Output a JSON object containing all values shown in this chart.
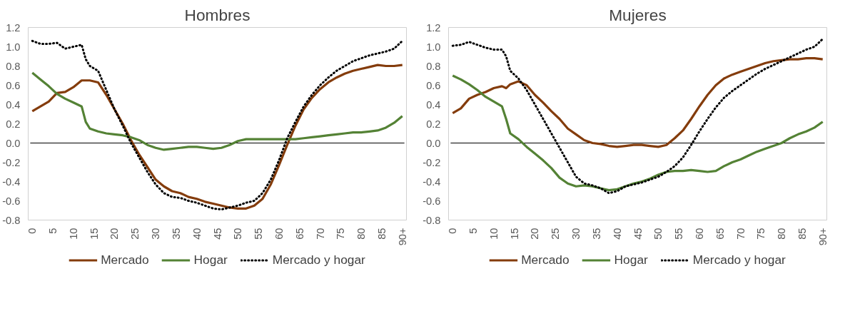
{
  "chart_data": [
    {
      "type": "line",
      "title": "Hombres",
      "x": [
        0,
        2,
        4,
        6,
        8,
        10,
        12,
        13,
        14,
        16,
        18,
        20,
        22,
        24,
        26,
        28,
        30,
        32,
        34,
        36,
        38,
        40,
        42,
        44,
        46,
        48,
        50,
        52,
        54,
        56,
        58,
        60,
        62,
        64,
        66,
        68,
        70,
        72,
        74,
        76,
        78,
        80,
        82,
        84,
        86,
        88,
        90
      ],
      "series": [
        {
          "name": "Mercado",
          "color": "#843c0c",
          "line_style": "solid",
          "values": [
            0.33,
            0.38,
            0.43,
            0.52,
            0.53,
            0.58,
            0.65,
            0.65,
            0.65,
            0.63,
            0.5,
            0.35,
            0.2,
            0.03,
            -0.12,
            -0.25,
            -0.38,
            -0.45,
            -0.5,
            -0.52,
            -0.56,
            -0.58,
            -0.61,
            -0.63,
            -0.65,
            -0.67,
            -0.68,
            -0.68,
            -0.65,
            -0.58,
            -0.43,
            -0.23,
            -0.02,
            0.18,
            0.35,
            0.47,
            0.56,
            0.63,
            0.68,
            0.72,
            0.75,
            0.77,
            0.79,
            0.81,
            0.8,
            0.8,
            0.81
          ]
        },
        {
          "name": "Hogar",
          "color": "#548235",
          "line_style": "solid",
          "values": [
            0.73,
            0.66,
            0.59,
            0.51,
            0.46,
            0.42,
            0.38,
            0.22,
            0.15,
            0.12,
            0.1,
            0.09,
            0.08,
            0.06,
            0.03,
            -0.02,
            -0.05,
            -0.07,
            -0.06,
            -0.05,
            -0.04,
            -0.04,
            -0.05,
            -0.06,
            -0.05,
            -0.02,
            0.02,
            0.04,
            0.04,
            0.04,
            0.04,
            0.04,
            0.04,
            0.04,
            0.05,
            0.06,
            0.07,
            0.08,
            0.09,
            0.1,
            0.11,
            0.11,
            0.12,
            0.13,
            0.16,
            0.21,
            0.28
          ]
        },
        {
          "name": "Mercado y hogar",
          "color": "#000000",
          "line_style": "dotted",
          "values": [
            1.06,
            1.03,
            1.03,
            1.04,
            0.98,
            1.0,
            1.02,
            0.87,
            0.8,
            0.75,
            0.55,
            0.35,
            0.18,
            0.0,
            -0.15,
            -0.3,
            -0.43,
            -0.52,
            -0.56,
            -0.57,
            -0.6,
            -0.62,
            -0.65,
            -0.68,
            -0.69,
            -0.67,
            -0.65,
            -0.62,
            -0.6,
            -0.52,
            -0.38,
            -0.18,
            0.05,
            0.22,
            0.38,
            0.5,
            0.6,
            0.68,
            0.75,
            0.8,
            0.85,
            0.88,
            0.91,
            0.93,
            0.95,
            0.98,
            1.06
          ]
        }
      ],
      "xlim": [
        -1,
        91
      ],
      "xticks": [
        0,
        5,
        10,
        15,
        20,
        25,
        30,
        35,
        40,
        45,
        50,
        55,
        60,
        65,
        70,
        75,
        80,
        85,
        {
          "value": 90,
          "label": "90+"
        }
      ],
      "ylim": [
        -0.8,
        1.2
      ],
      "yticks": [
        {
          "value": -0.8,
          "label": "-0.8"
        },
        {
          "value": -0.6,
          "label": "-0.6"
        },
        {
          "value": -0.4,
          "label": "-0.4"
        },
        {
          "value": -0.2,
          "label": "-0.2"
        },
        {
          "value": 0,
          "label": "0.0"
        },
        {
          "value": 0.2,
          "label": "0.2"
        },
        {
          "value": 0.4,
          "label": "0.4"
        },
        {
          "value": 0.6,
          "label": "0.6"
        },
        {
          "value": 0.8,
          "label": "0.8"
        },
        {
          "value": 1,
          "label": "1.0"
        },
        {
          "value": 1.2,
          "label": "1.2"
        }
      ],
      "ref_lines": [
        {
          "axis": "y",
          "value": 0,
          "color": "#000000"
        }
      ],
      "grid": false,
      "legend": "bottom",
      "marker": "none"
    },
    {
      "type": "line",
      "title": "Mujeres",
      "x": [
        0,
        2,
        4,
        6,
        8,
        10,
        12,
        13,
        14,
        16,
        18,
        20,
        22,
        24,
        26,
        28,
        30,
        32,
        34,
        36,
        38,
        40,
        42,
        44,
        46,
        48,
        50,
        52,
        54,
        56,
        58,
        60,
        62,
        64,
        66,
        68,
        70,
        72,
        74,
        76,
        78,
        80,
        82,
        84,
        86,
        88,
        90
      ],
      "series": [
        {
          "name": "Mercado",
          "color": "#843c0c",
          "line_style": "solid",
          "values": [
            0.31,
            0.36,
            0.46,
            0.5,
            0.53,
            0.57,
            0.59,
            0.57,
            0.61,
            0.64,
            0.6,
            0.5,
            0.42,
            0.33,
            0.25,
            0.15,
            0.09,
            0.03,
            0.0,
            -0.01,
            -0.03,
            -0.04,
            -0.03,
            -0.02,
            -0.02,
            -0.03,
            -0.04,
            -0.02,
            0.05,
            0.13,
            0.25,
            0.38,
            0.5,
            0.6,
            0.67,
            0.71,
            0.74,
            0.77,
            0.8,
            0.83,
            0.85,
            0.86,
            0.87,
            0.87,
            0.88,
            0.88,
            0.87
          ]
        },
        {
          "name": "Hogar",
          "color": "#548235",
          "line_style": "solid",
          "values": [
            0.7,
            0.66,
            0.61,
            0.55,
            0.48,
            0.43,
            0.38,
            0.25,
            0.1,
            0.04,
            -0.04,
            -0.11,
            -0.18,
            -0.26,
            -0.36,
            -0.42,
            -0.45,
            -0.44,
            -0.45,
            -0.47,
            -0.49,
            -0.48,
            -0.45,
            -0.42,
            -0.4,
            -0.37,
            -0.33,
            -0.3,
            -0.29,
            -0.29,
            -0.28,
            -0.29,
            -0.3,
            -0.29,
            -0.24,
            -0.2,
            -0.17,
            -0.13,
            -0.09,
            -0.06,
            -0.03,
            0.0,
            0.05,
            0.09,
            0.12,
            0.16,
            0.22
          ]
        },
        {
          "name": "Mercado y hogar",
          "color": "#000000",
          "line_style": "dotted",
          "values": [
            1.01,
            1.02,
            1.05,
            1.02,
            0.99,
            0.97,
            0.97,
            0.9,
            0.75,
            0.67,
            0.55,
            0.4,
            0.25,
            0.1,
            -0.05,
            -0.2,
            -0.35,
            -0.42,
            -0.44,
            -0.47,
            -0.52,
            -0.5,
            -0.45,
            -0.43,
            -0.41,
            -0.38,
            -0.35,
            -0.3,
            -0.24,
            -0.15,
            -0.02,
            0.12,
            0.25,
            0.37,
            0.47,
            0.54,
            0.6,
            0.66,
            0.72,
            0.77,
            0.81,
            0.85,
            0.89,
            0.93,
            0.97,
            1.0,
            1.08
          ]
        }
      ],
      "xlim": [
        -1,
        91
      ],
      "xticks": [
        0,
        5,
        10,
        15,
        20,
        25,
        30,
        35,
        40,
        45,
        50,
        55,
        60,
        65,
        70,
        75,
        80,
        85,
        {
          "value": 90,
          "label": "90+"
        }
      ],
      "ylim": [
        -0.8,
        1.2
      ],
      "yticks": [
        {
          "value": -0.8,
          "label": "-0.8"
        },
        {
          "value": -0.6,
          "label": "-0.6"
        },
        {
          "value": -0.4,
          "label": "-0.4"
        },
        {
          "value": -0.2,
          "label": "-0.2"
        },
        {
          "value": 0,
          "label": "0.0"
        },
        {
          "value": 0.2,
          "label": "0.2"
        },
        {
          "value": 0.4,
          "label": "0.4"
        },
        {
          "value": 0.6,
          "label": "0.6"
        },
        {
          "value": 0.8,
          "label": "0.8"
        },
        {
          "value": 1,
          "label": "1.0"
        },
        {
          "value": 1.2,
          "label": "1.2"
        }
      ],
      "ref_lines": [
        {
          "axis": "y",
          "value": 0,
          "color": "#000000"
        }
      ],
      "grid": false,
      "legend": "bottom",
      "marker": "none"
    }
  ]
}
